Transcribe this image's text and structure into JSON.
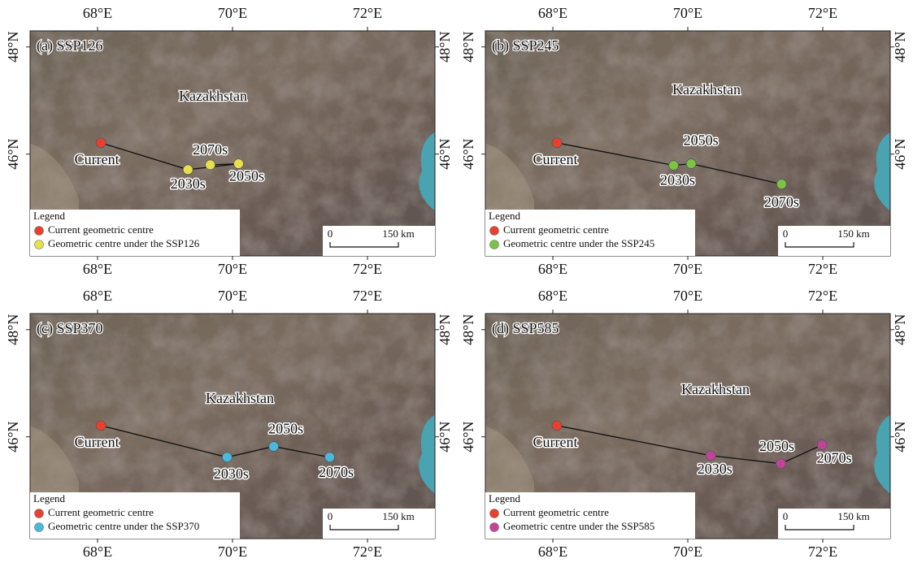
{
  "panels": [
    {
      "title": "(a) SSP126",
      "country_label": "Kazakhstan",
      "xlim": [
        67,
        73
      ],
      "ylim": [
        44.1,
        48.3
      ],
      "xticks": [
        {
          "value": 68,
          "label": "68°E"
        },
        {
          "value": 70,
          "label": "70°E"
        },
        {
          "value": 72,
          "label": "72°E"
        }
      ],
      "yticks": [
        {
          "value": 46,
          "label": "46°N"
        },
        {
          "value": 48,
          "label": "48°N"
        }
      ],
      "points": [
        {
          "label": "Current",
          "lon": 68.05,
          "lat": 46.21,
          "color": "#e8402e"
        },
        {
          "label": "2030s",
          "lon": 69.34,
          "lat": 45.71,
          "color": "#e8e04a"
        },
        {
          "label": "2050s",
          "lon": 70.09,
          "lat": 45.82,
          "color": "#e8e04a"
        },
        {
          "label": "2070s",
          "lon": 69.67,
          "lat": 45.8,
          "color": "#e8e04a"
        }
      ],
      "legend": {
        "title": "Legend",
        "entries": [
          {
            "text": "Current geometric centre",
            "color": "#e8402e"
          },
          {
            "text": "Geometric centre under the SSP126",
            "color": "#e8e04a"
          }
        ]
      },
      "scale_bar": {
        "start": "0",
        "end": "150 km"
      }
    },
    {
      "title": "(b) SSP245",
      "country_label": "Kazakhstan",
      "xlim": [
        67,
        73
      ],
      "ylim": [
        44.1,
        48.3
      ],
      "xticks": [
        {
          "value": 68,
          "label": "68°E"
        },
        {
          "value": 70,
          "label": "70°E"
        },
        {
          "value": 72,
          "label": "72°E"
        }
      ],
      "yticks": [
        {
          "value": 46,
          "label": "46°N"
        },
        {
          "value": 48,
          "label": "48°N"
        }
      ],
      "points": [
        {
          "label": "Current",
          "lon": 68.06,
          "lat": 46.21,
          "color": "#e8402e"
        },
        {
          "label": "2030s",
          "lon": 69.79,
          "lat": 45.79,
          "color": "#7dc242"
        },
        {
          "label": "2050s",
          "lon": 70.05,
          "lat": 45.82,
          "color": "#7dc242"
        },
        {
          "label": "2070s",
          "lon": 71.39,
          "lat": 45.44,
          "color": "#7dc242"
        }
      ],
      "legend": {
        "title": "Legend",
        "entries": [
          {
            "text": "Current geometric centre",
            "color": "#e8402e"
          },
          {
            "text": "Geometric centre under the SSP245",
            "color": "#7dc242"
          }
        ]
      },
      "scale_bar": {
        "start": "0",
        "end": "150 km"
      }
    },
    {
      "title": "(c) SSP370",
      "country_label": "Kazakhstan",
      "xlim": [
        67,
        73
      ],
      "ylim": [
        44.1,
        48.3
      ],
      "xticks": [
        {
          "value": 68,
          "label": "68°E"
        },
        {
          "value": 70,
          "label": "70°E"
        },
        {
          "value": 72,
          "label": "72°E"
        }
      ],
      "yticks": [
        {
          "value": 46,
          "label": "46°N"
        },
        {
          "value": 48,
          "label": "48°N"
        }
      ],
      "points": [
        {
          "label": "Current",
          "lon": 68.05,
          "lat": 46.21,
          "color": "#e8402e"
        },
        {
          "label": "2030s",
          "lon": 69.92,
          "lat": 45.62,
          "color": "#4bb8dc"
        },
        {
          "label": "2050s",
          "lon": 70.61,
          "lat": 45.82,
          "color": "#4bb8dc"
        },
        {
          "label": "2070s",
          "lon": 71.44,
          "lat": 45.62,
          "color": "#4bb8dc"
        }
      ],
      "legend": {
        "title": "Legend",
        "entries": [
          {
            "text": "Current geometric centre",
            "color": "#e8402e"
          },
          {
            "text": "Geometric centre under the SSP370",
            "color": "#4bb8dc"
          }
        ]
      },
      "scale_bar": {
        "start": "0",
        "end": "150 km"
      }
    },
    {
      "title": "(d) SSP585",
      "country_label": "Kazakhstan",
      "xlim": [
        67,
        73
      ],
      "ylim": [
        44.1,
        48.3
      ],
      "xticks": [
        {
          "value": 68,
          "label": "68°E"
        },
        {
          "value": 70,
          "label": "70°E"
        },
        {
          "value": 72,
          "label": "72°E"
        }
      ],
      "yticks": [
        {
          "value": 46,
          "label": "46°N"
        },
        {
          "value": 48,
          "label": "48°N"
        }
      ],
      "points": [
        {
          "label": "Current",
          "lon": 68.06,
          "lat": 46.21,
          "color": "#e8402e"
        },
        {
          "label": "2030s",
          "lon": 70.34,
          "lat": 45.65,
          "color": "#c2449a"
        },
        {
          "label": "2050s",
          "lon": 71.38,
          "lat": 45.5,
          "color": "#c2449a"
        },
        {
          "label": "2070s",
          "lon": 71.99,
          "lat": 45.85,
          "color": "#c2449a"
        }
      ],
      "legend": {
        "title": "Legend",
        "entries": [
          {
            "text": "Current geometric centre",
            "color": "#e8402e"
          },
          {
            "text": "Geometric centre under the SSP585",
            "color": "#c2449a"
          }
        ]
      },
      "scale_bar": {
        "start": "0",
        "end": "150 km"
      }
    }
  ]
}
